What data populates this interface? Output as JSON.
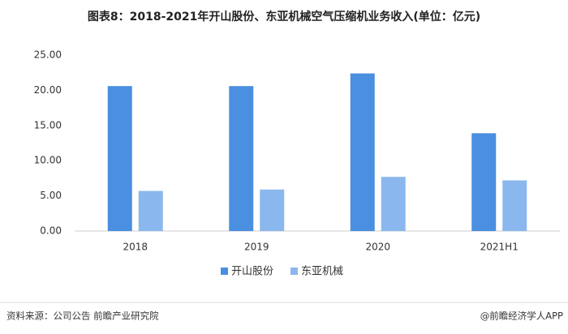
{
  "chart_data": {
    "type": "bar",
    "title": "图表8：2018-2021年开山股份、东亚机械空气压缩机业务收入(单位：亿元)",
    "categories": [
      "2018",
      "2019",
      "2020",
      "2021H1"
    ],
    "series": [
      {
        "name": "开山股份",
        "color": "#4a8fe0",
        "values": [
          20.6,
          20.6,
          22.4,
          13.9
        ]
      },
      {
        "name": "东亚机械",
        "color": "#8ab8ee",
        "values": [
          5.7,
          5.9,
          7.7,
          7.2
        ]
      }
    ],
    "ylim": [
      0,
      25
    ],
    "yticks": [
      {
        "value": 0,
        "label": "0.00"
      },
      {
        "value": 5,
        "label": "5.00"
      },
      {
        "value": 10,
        "label": "10.00"
      },
      {
        "value": 15,
        "label": "15.00"
      },
      {
        "value": 20,
        "label": "20.00"
      },
      {
        "value": 25,
        "label": "25.00"
      }
    ],
    "grid": false,
    "source": "资料来源：公司公告 前瞻产业研究院",
    "brand": "@前瞻经济学人APP"
  }
}
